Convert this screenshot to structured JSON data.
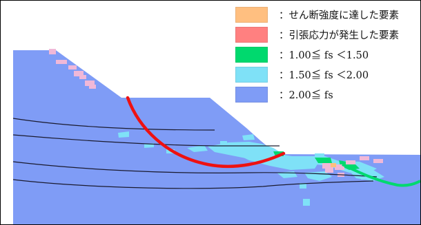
{
  "colors": {
    "ground": "#7f9cf6",
    "low_fs": "#7fe1f7",
    "mid_fs": "#00d96e",
    "tension": "#ff7f7f",
    "shear": "#ffbf80",
    "pink_patch": "#f0b8d8",
    "slip_circle": "#ee1111",
    "layer_line": "#1a1a2e"
  },
  "legend": {
    "items": [
      {
        "color": "#ffbf80",
        "label": "：せん断強度に達した要素",
        "icon": "shear-yield-swatch"
      },
      {
        "color": "#ff8080",
        "label": "：引張応力が発生した要素",
        "icon": "tension-swatch"
      },
      {
        "color": "#00d96e",
        "label": "：1.00≦ fs ＜1.50",
        "icon": "fs-100-150-swatch"
      },
      {
        "color": "#7fe1f7",
        "label": "：1.50≦ fs ＜2.00",
        "icon": "fs-150-200-swatch"
      },
      {
        "color": "#7f9cf6",
        "label": "：2.00≦ fs",
        "icon": "fs-over-200-swatch"
      }
    ]
  }
}
